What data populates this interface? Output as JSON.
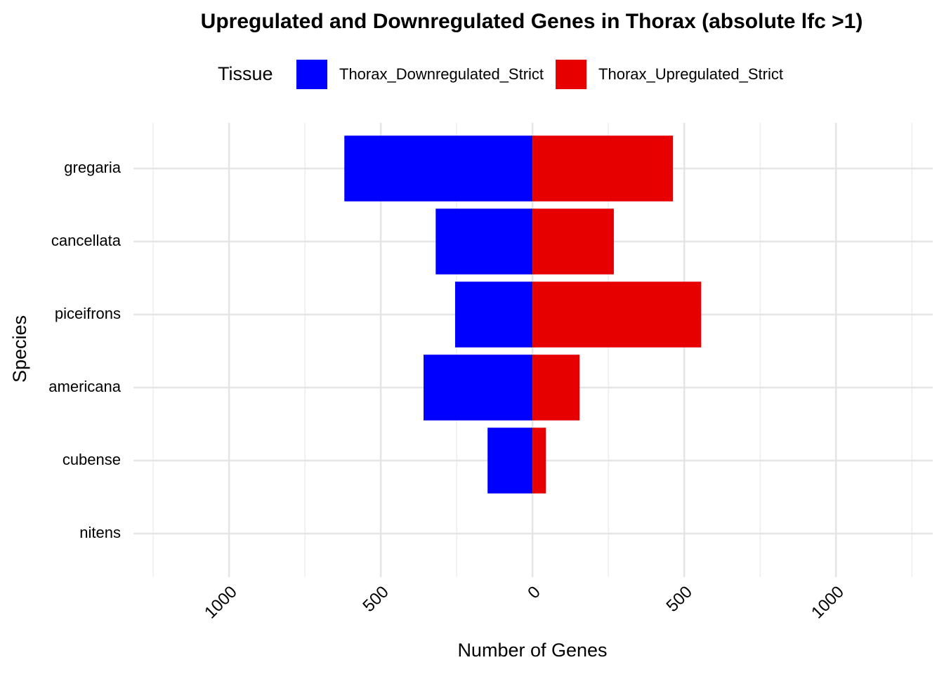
{
  "chart_data": {
    "type": "bar",
    "orientation": "horizontal",
    "stacked": true,
    "title": "Upregulated and Downregulated Genes in Thorax (absolute lfc >1)",
    "x_label": "Number of Genes",
    "y_label": "Species",
    "legend_title": "Tissue",
    "categories": [
      "gregaria",
      "cancellata",
      "piceifrons",
      "americana",
      "cubense",
      "nitens"
    ],
    "series": [
      {
        "name": "Thorax_Downregulated_Strict",
        "color": "#0000ff",
        "values": [
          -620,
          -319,
          -255,
          -359,
          -148,
          0
        ]
      },
      {
        "name": "Thorax_Upregulated_Strict",
        "color": "#e60000",
        "values": [
          463,
          268,
          556,
          155,
          44,
          0
        ]
      }
    ],
    "xlim": [
      -1315,
      1319
    ],
    "xticks": [
      {
        "value": -1000,
        "label": "1000"
      },
      {
        "value": -500,
        "label": "500"
      },
      0,
      500,
      1000
    ],
    "minor_xticks": [
      -1250,
      -750,
      -250,
      250,
      750,
      1250
    ],
    "grid": true
  }
}
